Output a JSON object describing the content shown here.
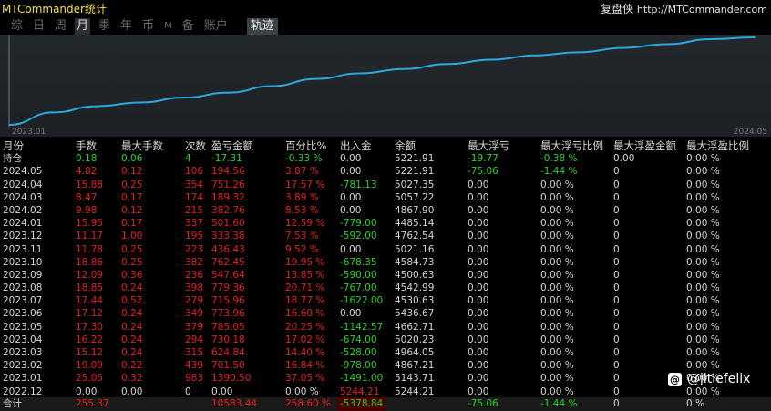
{
  "app": {
    "title": "MTCommander统计",
    "brand_name": "复盘侠",
    "brand_url": "http://MTCommander.com"
  },
  "tabs": [
    {
      "label": "综",
      "active": false
    },
    {
      "label": "日",
      "active": false
    },
    {
      "label": "周",
      "active": false
    },
    {
      "label": "月",
      "active": true
    },
    {
      "label": "季",
      "active": false
    },
    {
      "label": "年",
      "active": false
    },
    {
      "label": "币",
      "active": false
    },
    {
      "label": "M",
      "active": false
    },
    {
      "label": "备",
      "active": false
    },
    {
      "label": "账户",
      "active": false
    }
  ],
  "trajectory_tab": "轨迹",
  "chart_data": {
    "type": "line",
    "x_start_label": "2023.01",
    "x_end_label": "2024.05",
    "x": [
      "2022.12",
      "2023.01",
      "2023.02",
      "2023.03",
      "2023.04",
      "2023.05",
      "2023.06",
      "2023.07",
      "2023.08",
      "2023.09",
      "2023.10",
      "2023.11",
      "2023.12",
      "2024.01",
      "2024.02",
      "2024.03",
      "2024.04",
      "2024.05"
    ],
    "values": [
      0,
      4.0,
      6.0,
      7.2,
      8.8,
      10.4,
      12.5,
      14.8,
      16.6,
      18.0,
      19.6,
      21.0,
      22.4,
      23.4,
      24.8,
      26.0,
      27.6,
      28.2
    ],
    "line_color": "#2aa7e0",
    "grid": false
  },
  "columns": [
    "月份",
    "手数",
    "最大手数",
    "次数",
    "盈亏金额",
    "百分比%",
    "出入金",
    "余额",
    "最大浮亏",
    "最大浮亏比例",
    "最大浮盈金额",
    "最大浮盈比例"
  ],
  "position_row": {
    "cells": [
      "持仓",
      "0.18",
      "0.06",
      "4",
      "-17.31",
      "-0.33 %",
      "0.00",
      "5221.91",
      "-19.77",
      "-0.38 %",
      "0.00",
      "0.00 %"
    ],
    "colors": [
      "white",
      "green",
      "green",
      "green",
      "green",
      "green",
      "white",
      "white",
      "green",
      "green",
      "white",
      "white"
    ]
  },
  "rows": [
    {
      "cells": [
        "2024.05",
        "4.82",
        "0.12",
        "106",
        "194.56",
        "3.87 %",
        "0.00",
        "5221.91",
        "-75.06",
        "-1.44 %",
        "0",
        "0.00 %"
      ],
      "colors": [
        "white",
        "red",
        "red",
        "red",
        "red",
        "red",
        "white",
        "white",
        "green",
        "green",
        "white",
        "white"
      ]
    },
    {
      "cells": [
        "2024.04",
        "15.88",
        "0.25",
        "354",
        "751.26",
        "17.57 %",
        "-781.13",
        "5027.35",
        "0.00",
        "0.00 %",
        "0",
        "0.00 %"
      ],
      "colors": [
        "white",
        "red",
        "red",
        "red",
        "red",
        "red",
        "green",
        "white",
        "white",
        "white",
        "white",
        "white"
      ]
    },
    {
      "cells": [
        "2024.03",
        "8.47",
        "0.17",
        "174",
        "189.32",
        "3.89 %",
        "0.00",
        "5057.22",
        "0.00",
        "0.00 %",
        "0",
        "0.00 %"
      ],
      "colors": [
        "white",
        "red",
        "red",
        "red",
        "red",
        "red",
        "white",
        "white",
        "white",
        "white",
        "white",
        "white"
      ]
    },
    {
      "cells": [
        "2024.02",
        "9.98",
        "0.12",
        "215",
        "382.76",
        "8.53 %",
        "0.00",
        "4867.90",
        "0.00",
        "0.00 %",
        "0",
        "0.00 %"
      ],
      "colors": [
        "white",
        "red",
        "red",
        "red",
        "red",
        "red",
        "white",
        "white",
        "white",
        "white",
        "white",
        "white"
      ]
    },
    {
      "cells": [
        "2024.01",
        "15.95",
        "0.17",
        "337",
        "501.60",
        "12.59 %",
        "-779.00",
        "4485.14",
        "0.00",
        "0.00 %",
        "0",
        "0.00 %"
      ],
      "colors": [
        "white",
        "red",
        "red",
        "red",
        "red",
        "red",
        "green",
        "white",
        "white",
        "white",
        "white",
        "white"
      ]
    },
    {
      "cells": [
        "2023.12",
        "11.17",
        "1.00",
        "195",
        "333.38",
        "7.53 %",
        "-592.00",
        "4762.54",
        "0.00",
        "0.00 %",
        "0",
        "0.00 %"
      ],
      "colors": [
        "white",
        "red",
        "red",
        "red",
        "red",
        "red",
        "green",
        "white",
        "white",
        "white",
        "white",
        "white"
      ]
    },
    {
      "cells": [
        "2023.11",
        "11.78",
        "0.25",
        "223",
        "436.43",
        "9.52 %",
        "0.00",
        "5021.16",
        "0.00",
        "0.00 %",
        "0",
        "0.00 %"
      ],
      "colors": [
        "white",
        "red",
        "red",
        "red",
        "red",
        "red",
        "white",
        "white",
        "white",
        "white",
        "white",
        "white"
      ]
    },
    {
      "cells": [
        "2023.10",
        "18.86",
        "0.25",
        "382",
        "762.45",
        "19.95 %",
        "-678.35",
        "4584.73",
        "0.00",
        "0.00 %",
        "0",
        "0.00 %"
      ],
      "colors": [
        "white",
        "red",
        "red",
        "red",
        "red",
        "red",
        "green",
        "white",
        "white",
        "white",
        "white",
        "white"
      ]
    },
    {
      "cells": [
        "2023.09",
        "12.09",
        "0.36",
        "236",
        "547.64",
        "13.85 %",
        "-590.00",
        "4500.63",
        "0.00",
        "0.00 %",
        "0",
        "0.00 %"
      ],
      "colors": [
        "white",
        "red",
        "red",
        "red",
        "red",
        "red",
        "green",
        "white",
        "white",
        "white",
        "white",
        "white"
      ]
    },
    {
      "cells": [
        "2023.08",
        "18.85",
        "0.24",
        "398",
        "779.36",
        "20.71 %",
        "-767.00",
        "4542.99",
        "0.00",
        "0.00 %",
        "0",
        "0.00 %"
      ],
      "colors": [
        "white",
        "red",
        "red",
        "red",
        "red",
        "red",
        "green",
        "white",
        "white",
        "white",
        "white",
        "white"
      ]
    },
    {
      "cells": [
        "2023.07",
        "17.44",
        "0.52",
        "279",
        "715.96",
        "18.77 %",
        "-1622.00",
        "4530.63",
        "0.00",
        "0.00 %",
        "0",
        "0.00 %"
      ],
      "colors": [
        "white",
        "red",
        "red",
        "red",
        "red",
        "red",
        "green",
        "white",
        "white",
        "white",
        "white",
        "white"
      ]
    },
    {
      "cells": [
        "2023.06",
        "17.12",
        "0.24",
        "349",
        "773.96",
        "16.60 %",
        "0.00",
        "5436.67",
        "0.00",
        "0.00 %",
        "0",
        "0.00 %"
      ],
      "colors": [
        "white",
        "red",
        "red",
        "red",
        "red",
        "red",
        "white",
        "white",
        "white",
        "white",
        "white",
        "white"
      ]
    },
    {
      "cells": [
        "2023.05",
        "17.30",
        "0.24",
        "379",
        "785.05",
        "20.25 %",
        "-1142.57",
        "4662.71",
        "0.00",
        "0.00 %",
        "0",
        "0.00 %"
      ],
      "colors": [
        "white",
        "red",
        "red",
        "red",
        "red",
        "red",
        "green",
        "white",
        "white",
        "white",
        "white",
        "white"
      ]
    },
    {
      "cells": [
        "2023.04",
        "16.22",
        "0.24",
        "294",
        "730.18",
        "17.02 %",
        "-674.00",
        "5020.23",
        "0.00",
        "0.00 %",
        "0",
        "0.00 %"
      ],
      "colors": [
        "white",
        "red",
        "red",
        "red",
        "red",
        "red",
        "green",
        "white",
        "white",
        "white",
        "white",
        "white"
      ]
    },
    {
      "cells": [
        "2023.03",
        "15.12",
        "0.24",
        "315",
        "624.84",
        "14.40 %",
        "-528.00",
        "4964.05",
        "0.00",
        "0.00 %",
        "0",
        "0.00 %"
      ],
      "colors": [
        "white",
        "red",
        "red",
        "red",
        "red",
        "red",
        "green",
        "white",
        "white",
        "white",
        "white",
        "white"
      ]
    },
    {
      "cells": [
        "2023.02",
        "19.09",
        "0.22",
        "439",
        "701.50",
        "16.84 %",
        "-978.00",
        "4867.21",
        "0.00",
        "0.00 %",
        "0",
        "0.00 %"
      ],
      "colors": [
        "white",
        "red",
        "red",
        "red",
        "red",
        "red",
        "green",
        "white",
        "white",
        "white",
        "white",
        "white"
      ]
    },
    {
      "cells": [
        "2023.01",
        "25.05",
        "0.32",
        "983",
        "1390.50",
        "37.05 %",
        "-1491.00",
        "5143.71",
        "0.00",
        "0.00 %",
        "0",
        "0.00 %"
      ],
      "colors": [
        "white",
        "red",
        "red",
        "red",
        "red",
        "red",
        "green",
        "white",
        "white",
        "white",
        "white",
        "white"
      ]
    },
    {
      "cells": [
        "2022.12",
        "0.00",
        "0.00",
        "0",
        "0.00",
        "0.00 %",
        "5244.21",
        "5244.21",
        "0.00",
        "0.00 %",
        "0",
        "0.00 %"
      ],
      "colors": [
        "white",
        "white",
        "white",
        "white",
        "white",
        "white",
        "red",
        "white",
        "white",
        "white",
        "white",
        "white"
      ]
    }
  ],
  "total_row": {
    "cells": [
      "合计",
      "255.37",
      "",
      "",
      "10583.44",
      "258.60 %",
      "-5378.84",
      "",
      "-75.06",
      "-1.44 %",
      "0",
      "0 %"
    ],
    "colors": [
      "white",
      "red",
      "white",
      "white",
      "red",
      "red",
      "green",
      "white",
      "green",
      "green",
      "white",
      "white"
    ]
  },
  "watermark": {
    "icon": "threads-logo-icon",
    "handle": "@jitlefelix"
  },
  "colors": {
    "profit": "#e51f1f",
    "loss": "#27d427",
    "line": "#2aa7e0",
    "title": "#f2e24a"
  }
}
